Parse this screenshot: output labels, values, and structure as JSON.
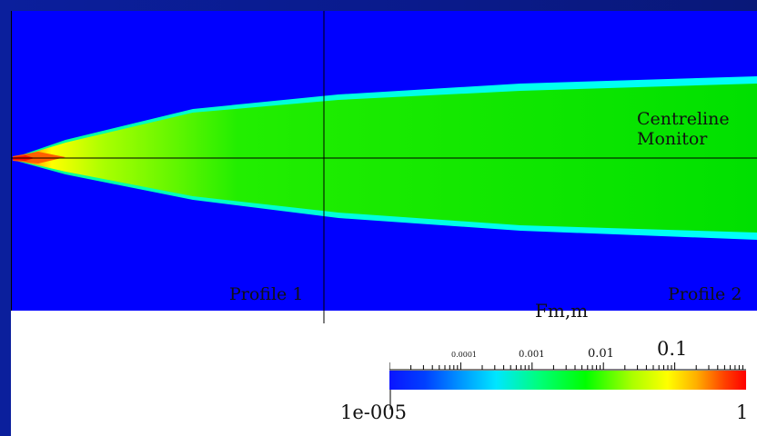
{
  "figure": {
    "centreline_label_line1": "Centreline",
    "centreline_label_line2": "Monitor",
    "profile1_label": "Profile 1",
    "profile2_label": "Profile 2"
  },
  "legend": {
    "title": "Fm,m",
    "scale": "log",
    "min_label": "1e-005",
    "max_label": "1",
    "tick_labels": [
      "0.0001",
      "0.001",
      "0.01",
      "0.1"
    ],
    "colormap": [
      "#0a14ff",
      "#00e6ff",
      "#00ff00",
      "#ffff00",
      "#ff0000"
    ]
  },
  "colors": {
    "background": "#0000ff",
    "frame": "#0a1a8a",
    "plume_outer": "#00ffff",
    "plume_core": "#00e600",
    "source": "#ff2000"
  }
}
